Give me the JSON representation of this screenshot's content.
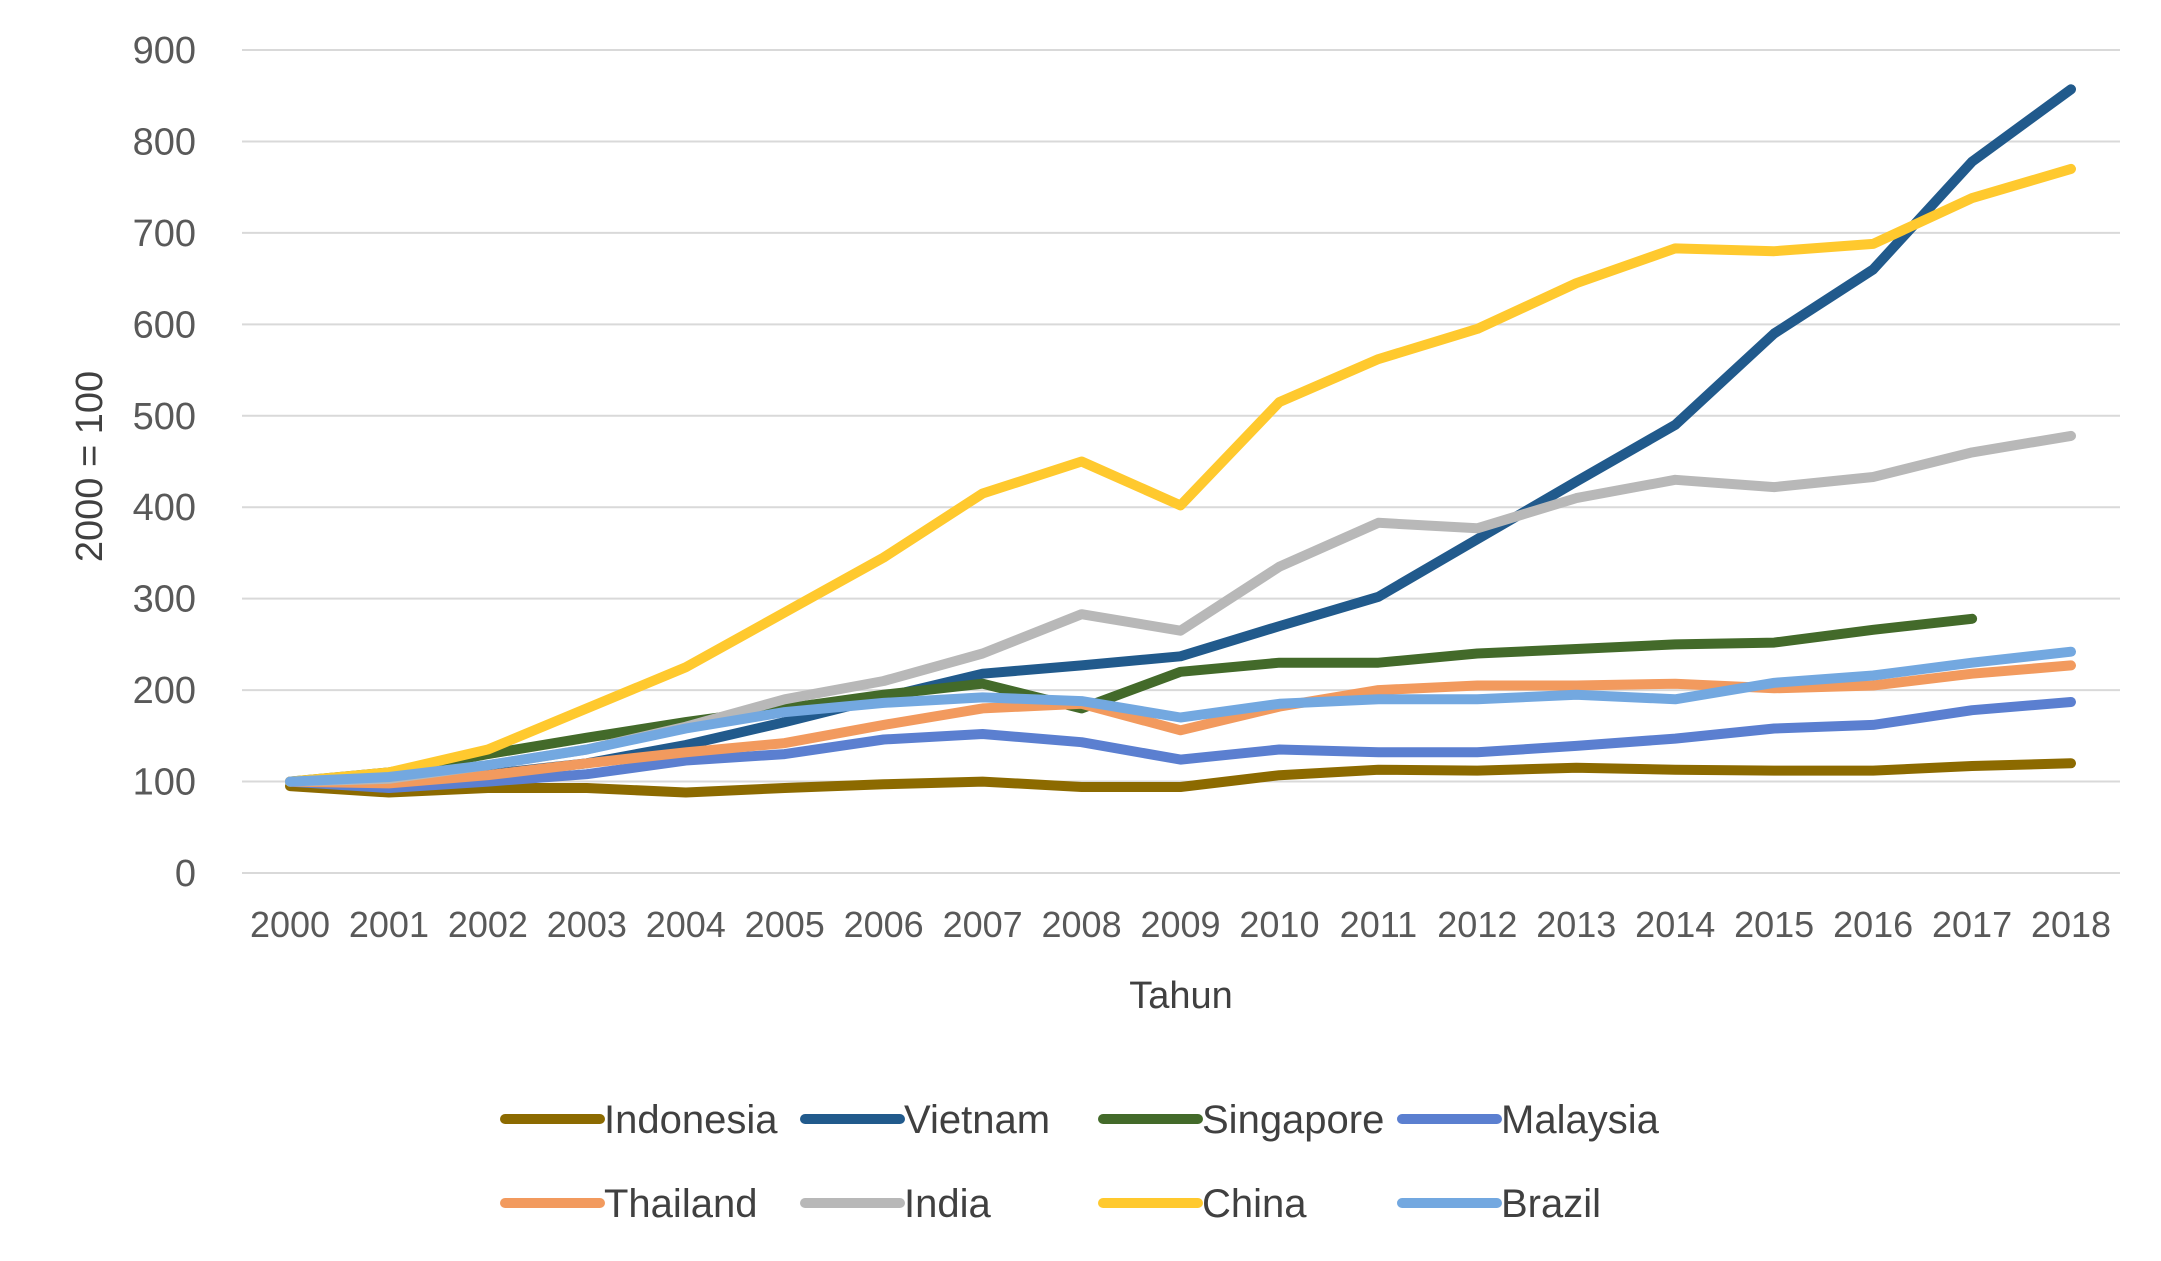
{
  "chart_data": {
    "type": "line",
    "title": "",
    "xlabel": "Tahun",
    "ylabel": "2000 = 100",
    "ylim": [
      0,
      900
    ],
    "yticks": [
      "0",
      "100",
      "200",
      "300",
      "400",
      "500",
      "600",
      "700",
      "800",
      "900"
    ],
    "grid": true,
    "legend_position": "bottom",
    "categories": [
      "2000",
      "2001",
      "2002",
      "2003",
      "2004",
      "2005",
      "2006",
      "2007",
      "2008",
      "2009",
      "2010",
      "2011",
      "2012",
      "2013",
      "2014",
      "2015",
      "2016",
      "2017",
      "2018"
    ],
    "series": [
      {
        "name": "Indonesia",
        "color": "#8C6A00",
        "values": [
          95,
          88,
          93,
          93,
          88,
          93,
          97,
          100,
          94,
          94,
          107,
          113,
          112,
          115,
          113,
          112,
          112,
          117,
          120
        ]
      },
      {
        "name": "Vietnam",
        "color": "#215A8C",
        "values": [
          100,
          98,
          108,
          120,
          140,
          165,
          192,
          218,
          227,
          237,
          270,
          302,
          365,
          428,
          490,
          590,
          660,
          778,
          857
        ]
      },
      {
        "name": "Singapore",
        "color": "#436A2A",
        "values": [
          100,
          110,
          130,
          148,
          165,
          180,
          195,
          207,
          180,
          220,
          230,
          230,
          240,
          245,
          250,
          252,
          266,
          278,
          null
        ]
      },
      {
        "name": "Malaysia",
        "color": "#5B7FD0",
        "values": [
          100,
          93,
          100,
          108,
          123,
          130,
          146,
          152,
          143,
          124,
          135,
          132,
          132,
          139,
          147,
          158,
          162,
          178,
          187
        ]
      },
      {
        "name": "Thailand",
        "color": "#F29A5E",
        "values": [
          100,
          98,
          107,
          120,
          132,
          142,
          162,
          180,
          185,
          156,
          182,
          200,
          205,
          205,
          207,
          202,
          205,
          218,
          227
        ]
      },
      {
        "name": "India",
        "color": "#B8B8B8",
        "values": [
          100,
          103,
          118,
          135,
          160,
          190,
          210,
          240,
          283,
          265,
          335,
          383,
          377,
          410,
          430,
          422,
          433,
          460,
          478
        ]
      },
      {
        "name": "China",
        "color": "#FFC92E",
        "values": [
          100,
          110,
          135,
          180,
          225,
          285,
          345,
          415,
          450,
          402,
          515,
          562,
          595,
          645,
          683,
          680,
          688,
          738,
          770
        ]
      },
      {
        "name": "Brazil",
        "color": "#73A8E0",
        "values": [
          100,
          105,
          118,
          135,
          158,
          176,
          186,
          192,
          188,
          170,
          185,
          190,
          190,
          195,
          190,
          208,
          216,
          230,
          242
        ]
      }
    ]
  }
}
